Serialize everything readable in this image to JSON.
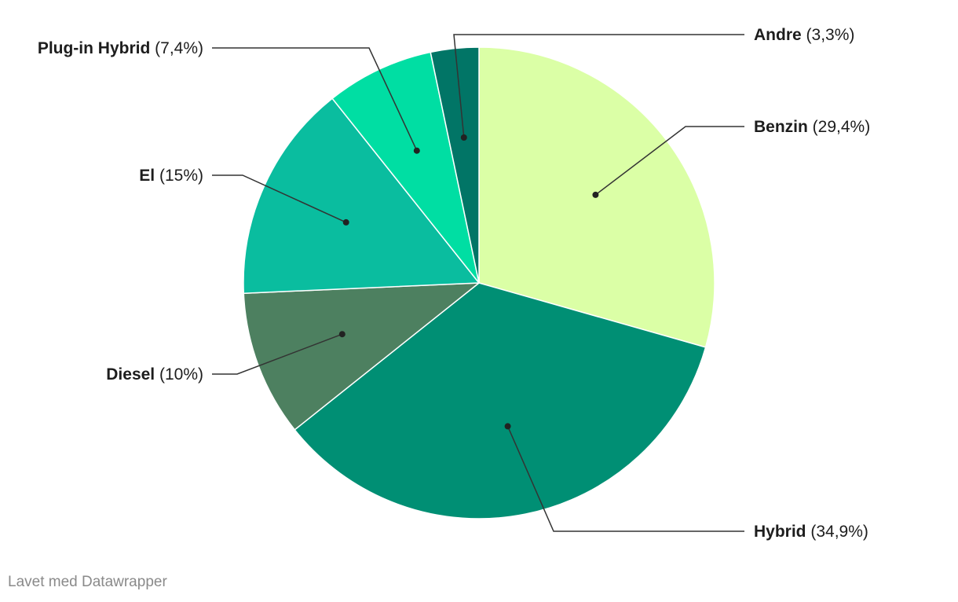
{
  "chart_data": {
    "type": "pie",
    "title": "",
    "start_angle_deg": 0,
    "direction": "clockwise",
    "slices": [
      {
        "name": "Benzin",
        "value": 29.4,
        "label_value": "(29,4%)",
        "color": "#dbffa6"
      },
      {
        "name": "Hybrid",
        "value": 34.9,
        "label_value": "(34,9%)",
        "color": "#008f74"
      },
      {
        "name": "Diesel",
        "value": 10.0,
        "label_value": "(10%)",
        "color": "#4d8060"
      },
      {
        "name": "El",
        "value": 15.0,
        "label_value": "(15%)",
        "color": "#0abd9f"
      },
      {
        "name": "Plug-in Hybrid",
        "value": 7.4,
        "label_value": "(7,4%)",
        "color": "#00dea3"
      },
      {
        "name": "Andre",
        "value": 3.3,
        "label_value": "(3,3%)",
        "color": "#017566"
      }
    ]
  },
  "footer": {
    "credit": "Lavet med Datawrapper"
  }
}
